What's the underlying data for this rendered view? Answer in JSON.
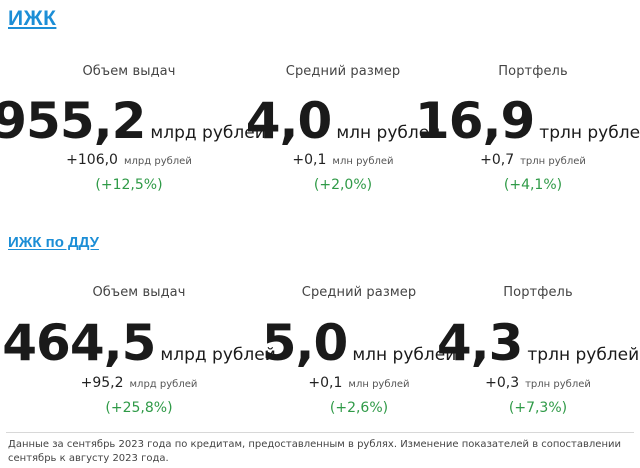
{
  "section1": {
    "title": "ИЖК",
    "cards": [
      {
        "label": "Объем выдач",
        "value": "955,2",
        "unit": "млрд рублей",
        "delta": "+106,0",
        "delta_unit": "млрд рублей",
        "pct": "(+12,5%)"
      },
      {
        "label": "Средний размер",
        "value": "4,0",
        "unit": "млн рублей",
        "delta": "+0,1",
        "delta_unit": "млн рублей",
        "pct": "(+2,0%)"
      },
      {
        "label": "Портфель",
        "value": "16,9",
        "unit": "трлн рублей",
        "delta": "+0,7",
        "delta_unit": "трлн рублей",
        "pct": "(+4,1%)"
      }
    ]
  },
  "section2": {
    "title": "ИЖК по ДДУ",
    "cards": [
      {
        "label": "Объем выдач",
        "value": "464,5",
        "unit": "млрд рублей",
        "delta": "+95,2",
        "delta_unit": "млрд рублей",
        "pct": "(+25,8%)"
      },
      {
        "label": "Средний размер",
        "value": "5,0",
        "unit": "млн рублей",
        "delta": "+0,1",
        "delta_unit": "млн рублей",
        "pct": "(+2,6%)"
      },
      {
        "label": "Портфель",
        "value": "4,3",
        "unit": "трлн рублей",
        "delta": "+0,3",
        "delta_unit": "трлн рублей",
        "pct": "(+7,3%)"
      }
    ]
  },
  "footnote": "Данные за сентябрь 2023 года по кредитам, предоставленным в рублях. Изменение показателей в сопоставлении сентябрь к августу 2023 года.",
  "colors": {
    "title": "#1c8ed6",
    "positive": "#2f9a47"
  }
}
